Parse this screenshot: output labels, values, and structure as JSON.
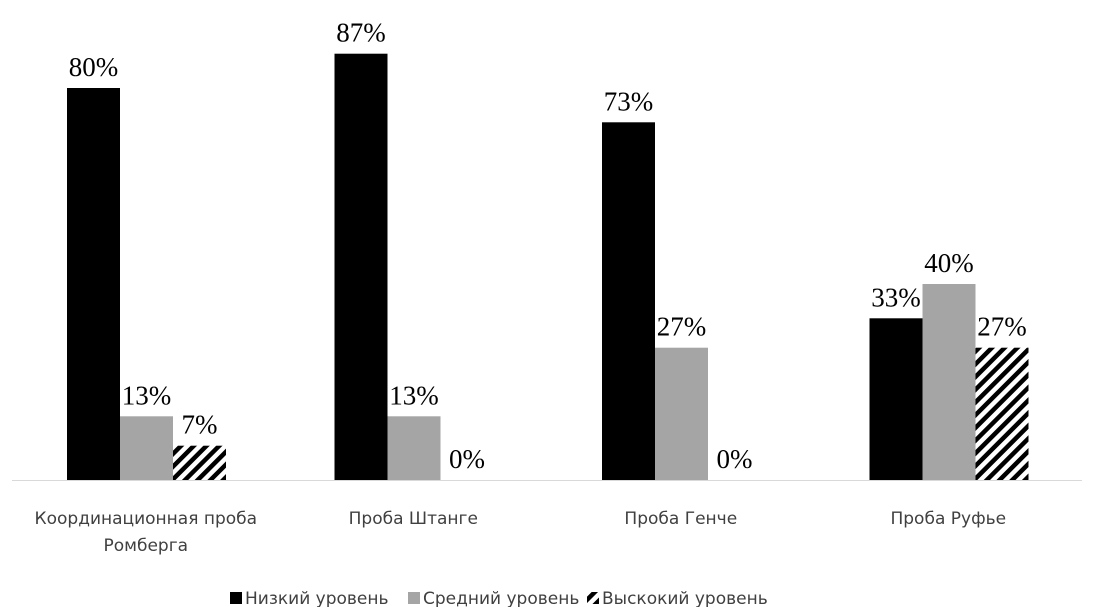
{
  "chart_data": {
    "type": "bar",
    "categories": [
      [
        "Координационная проба",
        "Ромберга"
      ],
      [
        "Проба Штанге"
      ],
      [
        "Проба Генче"
      ],
      [
        "Проба Руфье"
      ]
    ],
    "series": [
      {
        "name": "Низкий уровень",
        "values": [
          80,
          87,
          73,
          33
        ],
        "labels": [
          "80%",
          "87%",
          "73%",
          "33%"
        ],
        "color": "#000000",
        "pattern": "solid"
      },
      {
        "name": "Средний уровень",
        "values": [
          13,
          13,
          27,
          40
        ],
        "labels": [
          "13%",
          "13%",
          "27%",
          "40%"
        ],
        "color": "#a5a5a5",
        "pattern": "solid"
      },
      {
        "name": "Выскокий уровень",
        "values": [
          7,
          0,
          0,
          27
        ],
        "labels": [
          "7%",
          "0%",
          "0%",
          "27%"
        ],
        "color": "#000000",
        "pattern": "diagonal-stripes"
      }
    ],
    "ylim": [
      0,
      100
    ],
    "value_unit": "%",
    "grid": false,
    "legend_position": "bottom",
    "title": "",
    "xlabel": "",
    "ylabel": ""
  }
}
